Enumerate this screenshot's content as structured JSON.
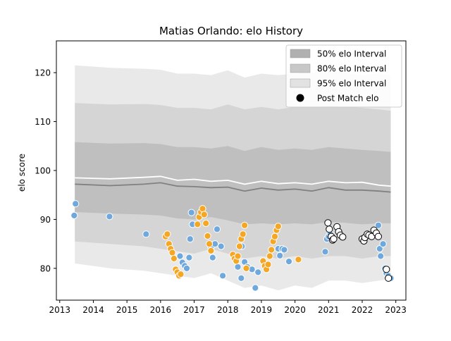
{
  "chart_data": {
    "type": "scatter",
    "title": "Matias Orlando: elo History",
    "xlabel": "",
    "ylabel": "elo score",
    "xlim": [
      2012.9,
      2023.3
    ],
    "ylim": [
      73.5,
      126.5
    ],
    "x_ticks": [
      2013,
      2014,
      2015,
      2016,
      2017,
      2018,
      2019,
      2020,
      2021,
      2022,
      2023
    ],
    "x_tick_labels": [
      "2013",
      "2014",
      "2015",
      "2016",
      "2017",
      "2018",
      "2019",
      "2020",
      "2021",
      "2022",
      "2023"
    ],
    "y_ticks": [
      80,
      90,
      100,
      110,
      120
    ],
    "y_tick_labels": [
      "80",
      "90",
      "100",
      "110",
      "120"
    ],
    "grid": false,
    "legend_position": "top-right",
    "legend": [
      {
        "label": "50% elo Interval",
        "kind": "band",
        "color": "#b0b0b0"
      },
      {
        "label": "80% elo Interval",
        "kind": "band",
        "color": "#c8c8c8"
      },
      {
        "label": "95% elo Interval",
        "kind": "band",
        "color": "#e2e2e2"
      },
      {
        "label": "Post Match elo",
        "kind": "marker",
        "color": "#000000"
      }
    ],
    "colors": {
      "band_95": "#e2e2e2",
      "band_80": "#cdcdcd",
      "band_50": "#b7b7b7",
      "mean_line": "#ffffff",
      "median_line": "#808080",
      "blue_points": "#6fa8dc",
      "orange_points": "#f5a623",
      "post_match_points": "#ffffff"
    },
    "band_x": [
      2013.45,
      2014.5,
      2015.5,
      2016.0,
      2016.5,
      2017.0,
      2017.5,
      2018.0,
      2018.5,
      2019.0,
      2019.5,
      2020.0,
      2020.5,
      2021.0,
      2021.5,
      2022.0,
      2022.5,
      2022.85
    ],
    "band_95": {
      "upper": [
        121.5,
        121.0,
        120.8,
        120.6,
        119.8,
        119.8,
        119.5,
        120.5,
        119.0,
        119.8,
        119.5,
        119.8,
        120.0,
        120.2,
        120.0,
        119.5,
        119.8,
        119.5
      ],
      "lower": [
        81.0,
        80.0,
        79.5,
        79.0,
        78.5,
        78.0,
        79.0,
        77.5,
        76.0,
        76.5,
        75.5,
        76.5,
        76.0,
        77.5,
        77.5,
        77.0,
        77.5,
        77.8
      ]
    },
    "band_80": {
      "upper": [
        113.8,
        113.5,
        113.6,
        113.4,
        112.8,
        112.8,
        112.5,
        113.5,
        112.5,
        113.0,
        112.5,
        113.0,
        113.0,
        113.2,
        113.0,
        112.8,
        112.5,
        112.2
      ],
      "lower": [
        85.5,
        85.0,
        84.5,
        84.0,
        83.5,
        83.0,
        84.0,
        83.0,
        82.0,
        82.5,
        82.0,
        82.5,
        82.0,
        82.5,
        82.5,
        82.0,
        82.5,
        82.5
      ]
    },
    "band_50": {
      "upper": [
        105.8,
        105.5,
        105.6,
        105.4,
        104.8,
        104.8,
        104.5,
        105.0,
        104.0,
        104.8,
        104.2,
        104.5,
        104.2,
        104.8,
        104.5,
        104.2,
        104.0,
        103.8
      ],
      "lower": [
        91.5,
        91.2,
        91.0,
        90.8,
        90.2,
        90.0,
        90.5,
        89.8,
        89.0,
        89.2,
        89.0,
        89.2,
        89.0,
        89.5,
        89.3,
        89.0,
        89.2,
        89.2
      ]
    },
    "mean_line": [
      98.5,
      98.3,
      98.6,
      98.8,
      98.0,
      98.2,
      97.8,
      98.0,
      97.2,
      97.8,
      97.3,
      97.5,
      97.2,
      97.8,
      97.5,
      97.6,
      97.0,
      96.8
    ],
    "median_line": [
      97.2,
      96.9,
      97.2,
      97.5,
      96.8,
      96.7,
      96.5,
      96.6,
      95.8,
      96.4,
      96.0,
      96.2,
      95.8,
      96.5,
      96.0,
      96.0,
      95.8,
      95.6
    ],
    "series": [
      {
        "x": [
          2013.43,
          2013.47,
          2014.48,
          2015.57,
          2016.58,
          2016.65,
          2016.72,
          2016.78,
          2016.85,
          2016.88,
          2016.92,
          2016.95,
          2017.5,
          2017.55,
          2017.62,
          2017.68,
          2017.8,
          2017.85,
          2018.3,
          2018.4,
          2018.42,
          2018.5,
          2018.58,
          2018.72,
          2018.82,
          2018.9,
          2019.5,
          2019.55,
          2019.62,
          2019.68,
          2019.82,
          2020.9,
          2020.95,
          2021.0,
          2021.05,
          2022.48,
          2022.52,
          2022.55,
          2022.62,
          2022.68,
          2022.72,
          2022.78,
          2022.85
        ],
        "y": [
          90.8,
          93.2,
          90.6,
          87.0,
          82.5,
          81.2,
          80.5,
          80.0,
          82.2,
          86.0,
          91.4,
          89.0,
          84.3,
          82.2,
          85.0,
          88.0,
          84.5,
          78.5,
          80.3,
          78.0,
          84.5,
          81.3,
          80.3,
          79.8,
          76.0,
          79.2,
          84.0,
          82.6,
          84.0,
          83.8,
          81.4,
          83.4,
          86.0,
          86.5,
          87.0,
          88.8,
          84.0,
          82.5,
          85.0,
          80.0,
          79.0,
          78.5,
          78.0
        ]
      },
      {
        "x": [
          2016.15,
          2016.2,
          2016.25,
          2016.3,
          2016.35,
          2016.4,
          2016.45,
          2016.5,
          2016.55,
          2016.6,
          2017.1,
          2017.15,
          2017.2,
          2017.25,
          2017.3,
          2017.35,
          2017.4,
          2017.45,
          2017.5,
          2018.15,
          2018.2,
          2018.25,
          2018.3,
          2018.35,
          2018.4,
          2018.45,
          2018.5,
          2018.55,
          2019.05,
          2019.1,
          2019.15,
          2019.2,
          2019.25,
          2019.3,
          2019.35,
          2019.4,
          2019.45,
          2019.5,
          2020.1
        ],
        "y": [
          86.5,
          87.0,
          85.0,
          84.0,
          83.2,
          82.0,
          79.8,
          79.2,
          78.5,
          78.8,
          89.0,
          90.5,
          91.5,
          92.2,
          91.0,
          89.2,
          86.6,
          85.0,
          83.6,
          82.8,
          82.0,
          81.5,
          82.5,
          84.5,
          86.0,
          87.0,
          88.8,
          80.0,
          81.5,
          80.5,
          79.8,
          80.8,
          82.5,
          83.8,
          85.5,
          86.5,
          87.8,
          88.6,
          81.8
        ]
      },
      {
        "x": [
          2020.98,
          2021.02,
          2021.08,
          2021.12,
          2021.15,
          2021.25,
          2021.3,
          2021.35,
          2021.42,
          2022.0,
          2022.05,
          2022.08,
          2022.15,
          2022.2,
          2022.28,
          2022.35,
          2022.42,
          2022.48,
          2022.72,
          2022.78
        ],
        "y": [
          89.3,
          88.0,
          86.5,
          85.8,
          86.0,
          88.5,
          87.5,
          86.8,
          86.4,
          86.0,
          85.6,
          86.3,
          87.0,
          86.8,
          86.5,
          87.8,
          87.2,
          86.5,
          79.8,
          78.0
        ]
      }
    ]
  }
}
